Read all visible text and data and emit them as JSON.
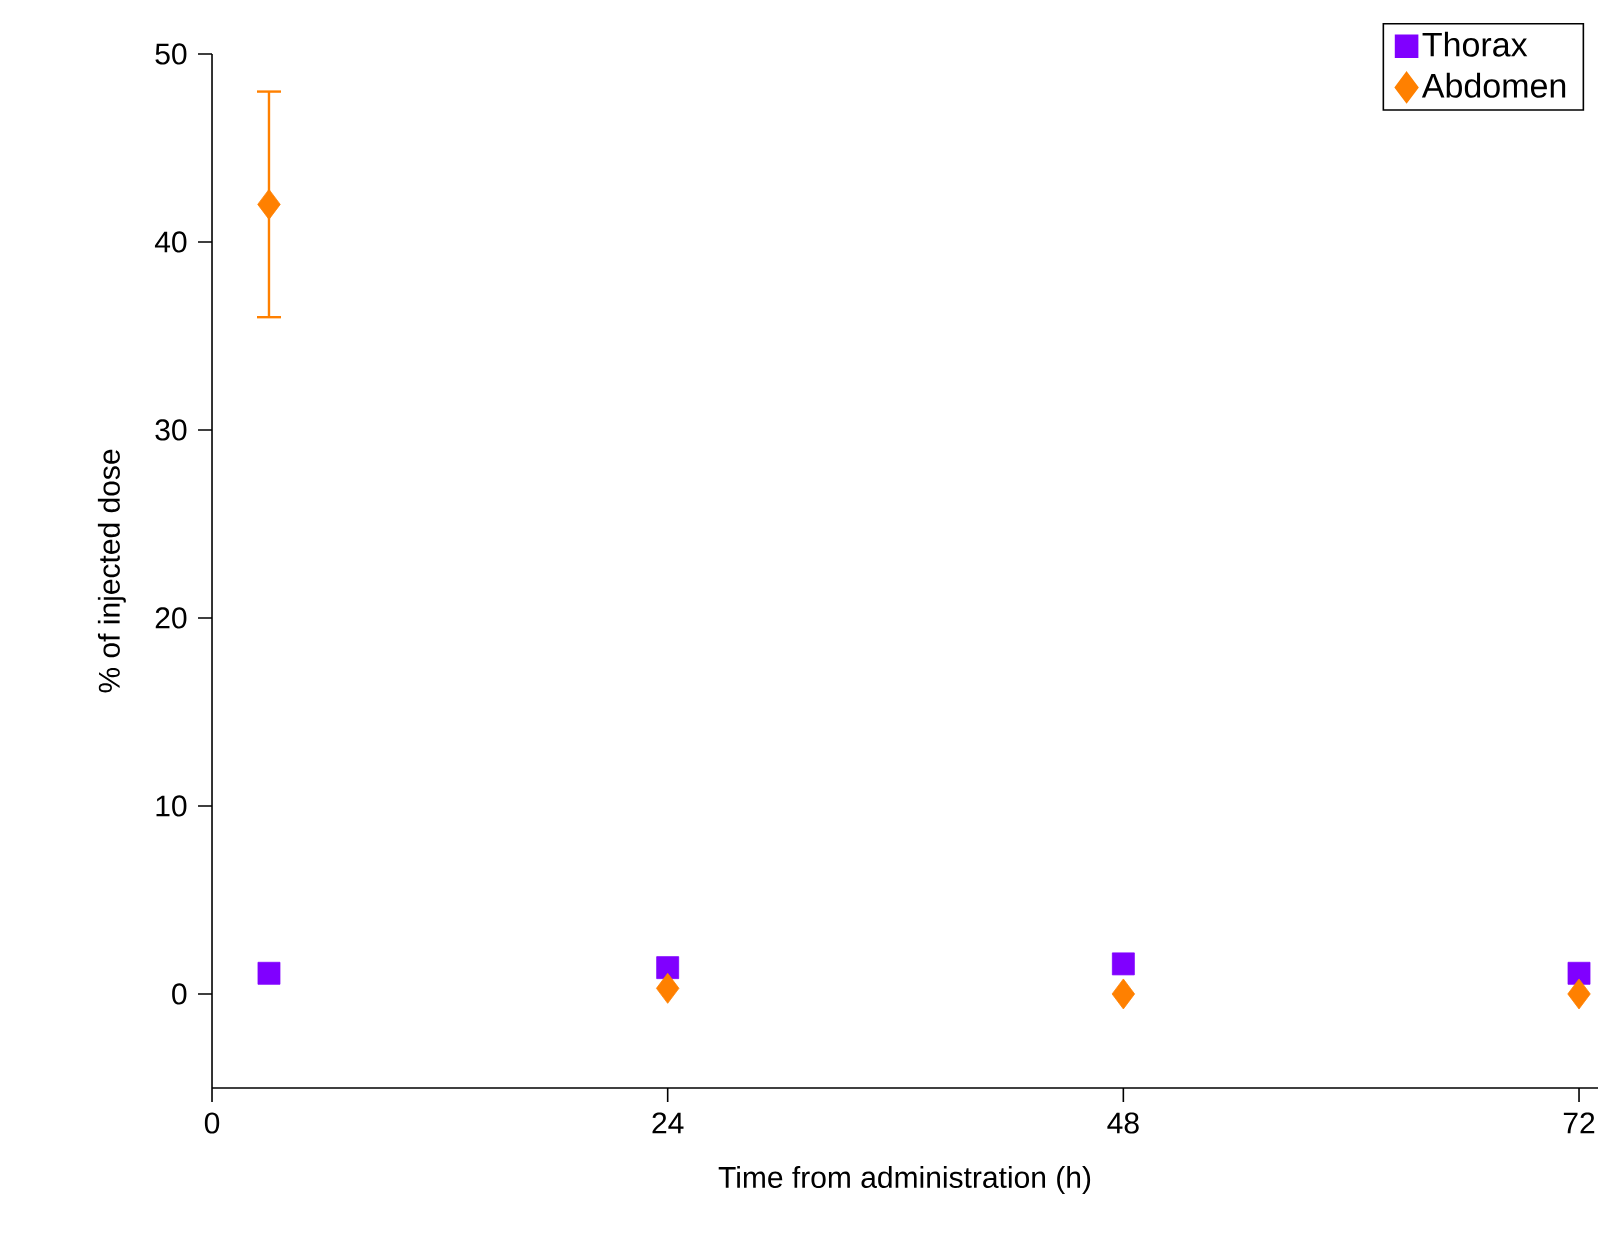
{
  "chart_data": {
    "type": "scatter",
    "xlabel": "Time from administration (h)",
    "ylabel": "% of injected dose",
    "x": [
      3,
      24,
      48,
      72
    ],
    "series": [
      {
        "name": "Thorax",
        "color": "#8000ff",
        "marker": "square",
        "values": [
          1.1,
          1.4,
          1.6,
          1.1
        ]
      },
      {
        "name": "Abdomen",
        "color": "#ff8000",
        "marker": "diamond",
        "values": [
          42,
          0.3,
          0,
          0
        ],
        "errors": [
          6,
          null,
          null,
          null
        ]
      }
    ],
    "xlim": [
      0,
      73
    ],
    "ylim": [
      -5,
      50
    ],
    "xticks": [
      0,
      24,
      48,
      72
    ],
    "yticks": [
      0,
      10,
      20,
      30,
      40,
      50
    ],
    "grid": false,
    "legend": "top right"
  }
}
